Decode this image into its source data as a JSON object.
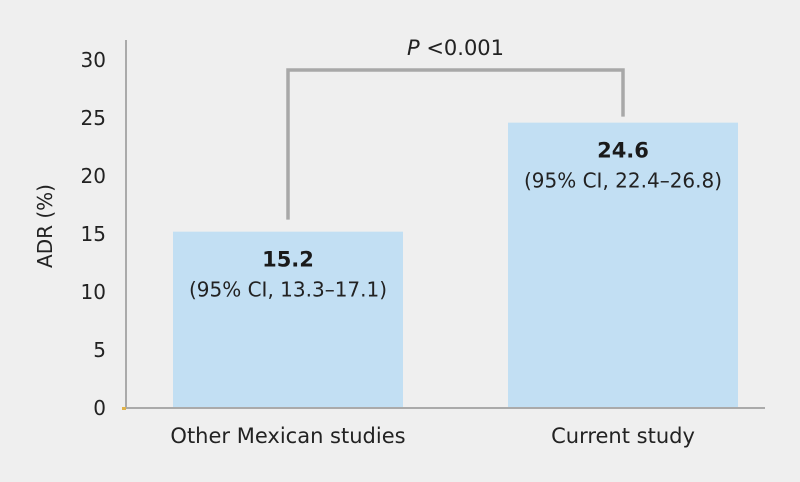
{
  "chart_data": {
    "type": "bar",
    "categories": [
      "Other Mexican studies",
      "Current study"
    ],
    "values": [
      15.2,
      24.6
    ],
    "value_labels": [
      "15.2",
      "24.6"
    ],
    "ci_labels": [
      "(95% CI, 13.3–17.1)",
      "(95% CI, 22.4–26.8)"
    ],
    "ylabel": "ADR (%)",
    "xlabel": "",
    "title": "",
    "ylim": [
      0,
      30
    ],
    "yticks": [
      0,
      5,
      10,
      15,
      20,
      25,
      30
    ],
    "grid": false,
    "legend": "none",
    "annotation": {
      "p_symbol": "P",
      "p_rest": " <0.001"
    },
    "colors": {
      "bar": "#c2dff3",
      "axis": "#aaaaaa",
      "bracket": "#a8a8a8",
      "background": "#efefef"
    }
  }
}
